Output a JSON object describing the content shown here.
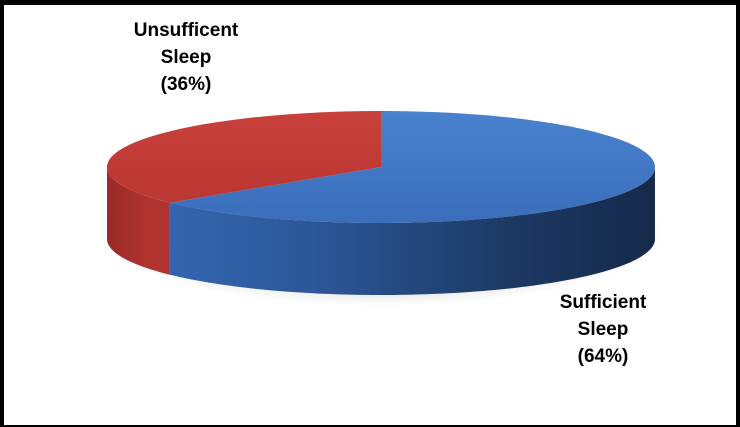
{
  "chart_data": {
    "type": "pie",
    "style": "3d",
    "slices": [
      {
        "label_lines": [
          "Sufficient",
          "Sleep",
          "(64%)"
        ],
        "value": 64,
        "color_top": "#3f74c2",
        "color_side_light": "#3568b3",
        "color_side_dark": "#15294a"
      },
      {
        "label_lines": [
          "Unsufficent",
          "Sleep",
          "(36%)"
        ],
        "value": 36,
        "color_top": "#c23a36",
        "color_side_light": "#b0332f",
        "color_side_dark": "#7d1e1b"
      }
    ],
    "start_angle_deg": 90,
    "legend": "none"
  }
}
